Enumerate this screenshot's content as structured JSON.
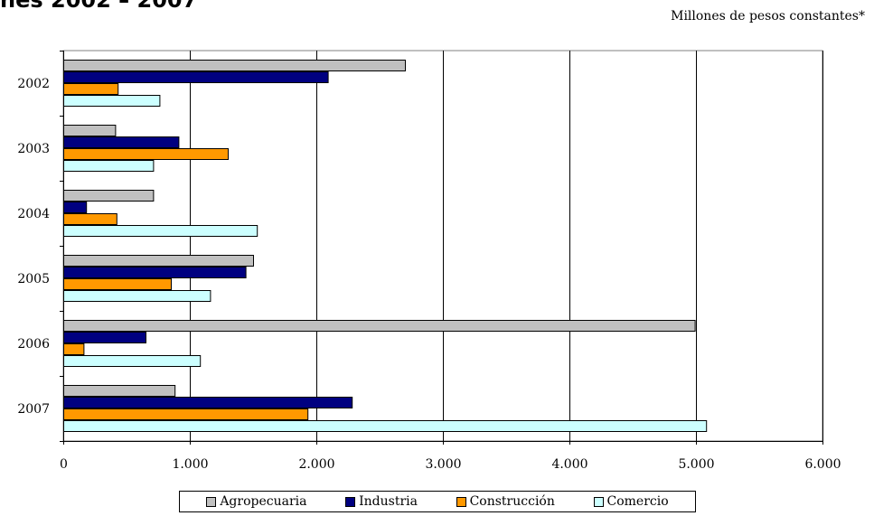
{
  "header": {
    "title_fragment": "ñes 2002 – 2007",
    "units": "Millones de pesos constantes*"
  },
  "chart_data": {
    "type": "bar",
    "orientation": "horizontal",
    "categories": [
      "2002",
      "2003",
      "2004",
      "2005",
      "2006",
      "2007"
    ],
    "series": [
      {
        "name": "Agropecuaria",
        "color": "#c0c0c0",
        "values": [
          2700,
          410,
          710,
          1500,
          4990,
          880
        ]
      },
      {
        "name": "Industria",
        "color": "#000080",
        "values": [
          2090,
          910,
          180,
          1440,
          650,
          2280
        ]
      },
      {
        "name": "Construcción",
        "color": "#ff9900",
        "values": [
          430,
          1300,
          420,
          850,
          160,
          1930
        ]
      },
      {
        "name": "Comercio",
        "color": "#ccffff",
        "values": [
          760,
          710,
          1530,
          1160,
          1080,
          5080
        ]
      }
    ],
    "xlim": [
      0,
      6000
    ],
    "xticks": [
      "0",
      "1.000",
      "2.000",
      "3.000",
      "4.000",
      "5.000",
      "6.000"
    ],
    "xtick_values": [
      0,
      1000,
      2000,
      3000,
      4000,
      5000,
      6000
    ],
    "grid": "vertical",
    "legend_position": "bottom"
  }
}
